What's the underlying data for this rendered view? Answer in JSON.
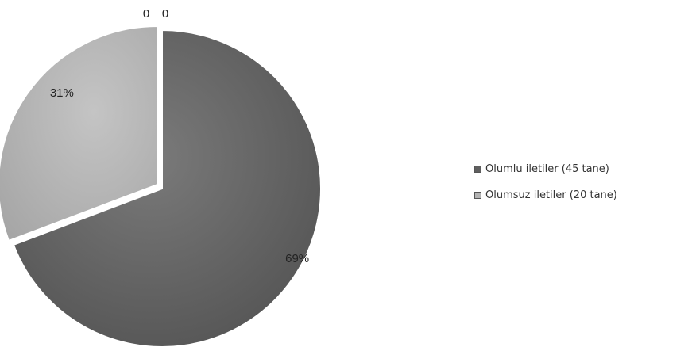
{
  "chart_data": {
    "type": "pie",
    "title": "",
    "categories": [
      "Olumlu iletiler (45 tane)",
      "Olumsuz iletiler (20 tane)"
    ],
    "values": [
      45,
      20
    ],
    "data_labels": [
      "69%",
      "31%"
    ],
    "extra_labels": [
      "0",
      "0"
    ],
    "colors": [
      "#5f5f5f",
      "#b3b3b3"
    ],
    "legend_position": "right",
    "style": "3d-shaded"
  }
}
